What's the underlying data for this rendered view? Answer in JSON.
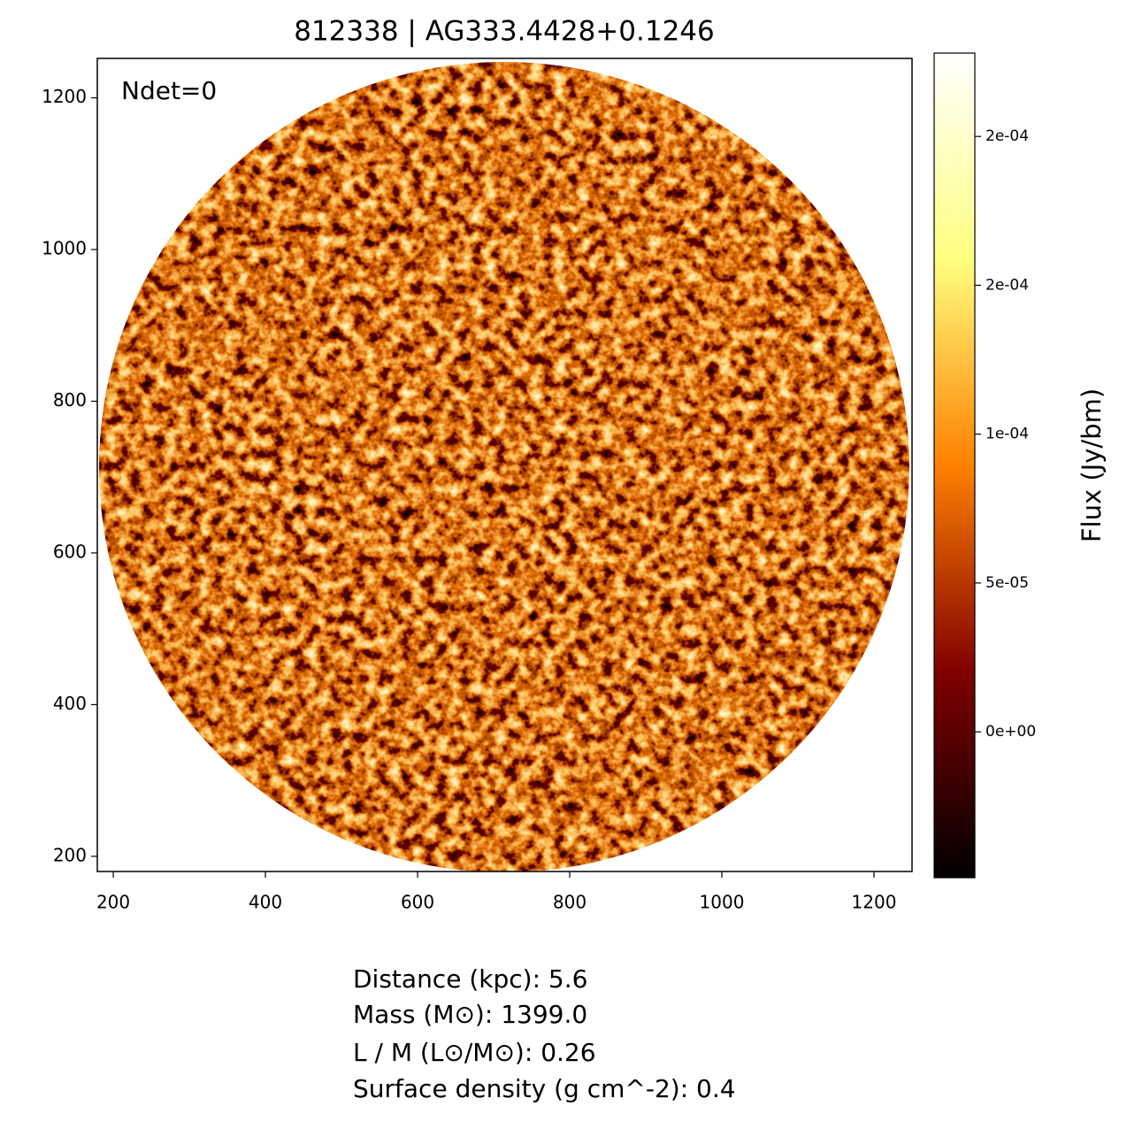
{
  "chart_data": {
    "type": "image",
    "title": "812338 | AG333.4428+0.1246",
    "annotation": "Ndet=0",
    "xlim": [
      179,
      1250
    ],
    "xticks": [
      200,
      400,
      600,
      800,
      1000,
      1200
    ],
    "ylim": [
      180,
      1252
    ],
    "yticks": [
      200,
      400,
      600,
      800,
      1000,
      1200
    ],
    "colormap": "afmhot",
    "colorbar": {
      "label": "Flux (Jy/bm)",
      "lim": [
        -4.9e-05,
        0.000228
      ],
      "ticks": [
        {
          "value": 0,
          "label": "0e+00"
        },
        {
          "value": 5e-05,
          "label": "5e-05"
        },
        {
          "value": 0.0001,
          "label": "1e-04"
        },
        {
          "value": 0.00015,
          "label": "2e-04"
        },
        {
          "value": 0.0002,
          "label": "2e-04"
        }
      ]
    },
    "notes": [
      "Distance (kpc): 5.6",
      "Mass (M⊙): 1399.0",
      "L / M (L⊙/M⊙): 0.26",
      "Surface density (g cm^-2): 0.4"
    ]
  }
}
